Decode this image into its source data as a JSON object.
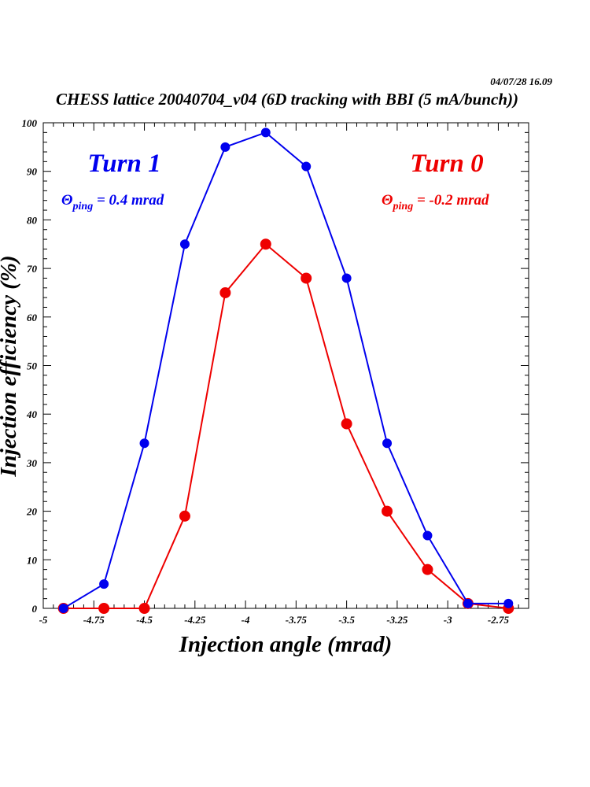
{
  "timestamp": "04/07/28   16.09",
  "chart_data": {
    "type": "line",
    "title": "CHESS lattice 20040704_v04 (6D tracking with BBI (5 mA/bunch))",
    "xlabel": "Injection angle (mrad)",
    "ylabel": "Injection efficiency (%)",
    "xlim": [
      -5,
      -2.6
    ],
    "ylim": [
      0,
      100
    ],
    "xticks": [
      -5,
      -4.75,
      -4.5,
      -4.25,
      -4,
      -3.75,
      -3.5,
      -3.25,
      -3,
      -2.75
    ],
    "xtick_labels": [
      "-5",
      "-4.75",
      "-4.5",
      "-4.25",
      "-4",
      "-3.75",
      "-3.5",
      "-3.25",
      "-3",
      "-2.75"
    ],
    "yticks": [
      0,
      10,
      20,
      30,
      40,
      50,
      60,
      70,
      80,
      90,
      100
    ],
    "ytick_labels": [
      "0",
      "10",
      "20",
      "30",
      "40",
      "50",
      "60",
      "70",
      "80",
      "90",
      "100"
    ],
    "x": [
      -4.9,
      -4.7,
      -4.5,
      -4.3,
      -4.1,
      -3.9,
      -3.7,
      -3.5,
      -3.3,
      -3.1,
      -2.9,
      -2.7
    ],
    "series": [
      {
        "name": "Turn 1",
        "color": "#0000ee",
        "values": [
          0,
          5,
          34,
          75,
          95,
          98,
          91,
          68,
          34,
          15,
          1,
          1
        ]
      },
      {
        "name": "Turn 0",
        "color": "#ee0000",
        "values": [
          0,
          0,
          0,
          19,
          65,
          75,
          68,
          38,
          20,
          8,
          1,
          0
        ]
      }
    ],
    "annotations": [
      {
        "label": "Turn 1",
        "theta_symbol": "Θ",
        "theta_sub": "ping",
        "theta_value": " = 0.4 mrad",
        "color": "#0000ee"
      },
      {
        "label": "Turn 0",
        "theta_symbol": "Θ",
        "theta_sub": "ping",
        "theta_value": " = -0.2 mrad",
        "color": "#ee0000"
      }
    ],
    "grid": false
  }
}
